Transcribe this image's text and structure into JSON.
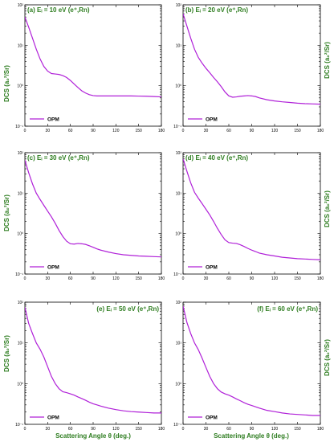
{
  "colors": {
    "curve": "#b020d8",
    "labels": "#2e7d20"
  },
  "figure": {
    "ylabel": "DCS (a₀²/Sr)",
    "xlabel": "Scattering Angle θ (deg.)"
  },
  "chart_data": [
    {
      "type": "line",
      "title": "(a) Eᵢ = 10 eV (e⁺,Rn)",
      "xlim": [
        0,
        180
      ],
      "ylim_log10": [
        -1,
        2
      ],
      "xticks": [
        0,
        30,
        60,
        90,
        120,
        150,
        180
      ],
      "ytick_labels": [
        "10⁻¹",
        "10⁰",
        "10¹",
        "10²"
      ],
      "series": [
        {
          "name": "OPM",
          "x": [
            0,
            5,
            10,
            15,
            20,
            25,
            30,
            35,
            40,
            45,
            50,
            55,
            60,
            65,
            70,
            75,
            80,
            85,
            90,
            95,
            100,
            110,
            120,
            130,
            140,
            150,
            160,
            170,
            180
          ],
          "y": [
            50,
            28,
            15,
            8,
            4.6,
            3.0,
            2.3,
            2.0,
            1.95,
            1.9,
            1.78,
            1.6,
            1.35,
            1.1,
            0.9,
            0.75,
            0.66,
            0.6,
            0.57,
            0.56,
            0.56,
            0.56,
            0.56,
            0.56,
            0.56,
            0.555,
            0.55,
            0.54,
            0.53
          ]
        }
      ]
    },
    {
      "type": "line",
      "title": "(b) Eᵢ = 20 eV (e⁺,Rn)",
      "xlim": [
        0,
        180
      ],
      "ylim_log10": [
        -1,
        2
      ],
      "xticks": [
        0,
        30,
        60,
        90,
        120,
        150,
        180
      ],
      "ytick_labels": [
        "10⁻¹",
        "10⁰",
        "10¹",
        "10²"
      ],
      "series": [
        {
          "name": "OPM",
          "x": [
            0,
            5,
            10,
            15,
            20,
            25,
            30,
            35,
            40,
            45,
            50,
            55,
            60,
            65,
            70,
            75,
            80,
            85,
            90,
            95,
            100,
            110,
            120,
            130,
            140,
            150,
            160,
            170,
            180
          ],
          "y": [
            60,
            30,
            15,
            8,
            5,
            3.6,
            2.7,
            2.1,
            1.6,
            1.25,
            0.95,
            0.7,
            0.56,
            0.52,
            0.53,
            0.55,
            0.56,
            0.57,
            0.56,
            0.54,
            0.5,
            0.45,
            0.42,
            0.4,
            0.385,
            0.37,
            0.36,
            0.355,
            0.35
          ]
        }
      ]
    },
    {
      "type": "line",
      "title": "(c) Eᵢ = 30 eV (e⁺,Rn)",
      "xlim": [
        0,
        180
      ],
      "ylim_log10": [
        -1,
        2
      ],
      "xticks": [
        0,
        30,
        60,
        90,
        120,
        150,
        180
      ],
      "ytick_labels": [
        "10⁻¹",
        "10⁰",
        "10¹",
        "10²"
      ],
      "series": [
        {
          "name": "OPM",
          "x": [
            0,
            5,
            10,
            15,
            20,
            25,
            30,
            35,
            40,
            45,
            50,
            55,
            60,
            65,
            70,
            75,
            80,
            85,
            90,
            95,
            100,
            110,
            120,
            130,
            140,
            150,
            160,
            170,
            180
          ],
          "y": [
            65,
            32,
            17,
            10,
            7,
            5,
            3.6,
            2.6,
            1.8,
            1.2,
            0.85,
            0.65,
            0.56,
            0.55,
            0.57,
            0.56,
            0.54,
            0.5,
            0.46,
            0.42,
            0.39,
            0.35,
            0.32,
            0.3,
            0.29,
            0.28,
            0.275,
            0.27,
            0.265
          ]
        }
      ]
    },
    {
      "type": "line",
      "title": "(d) Eᵢ = 40 eV (e⁺,Rn)",
      "xlim": [
        0,
        180
      ],
      "ylim_log10": [
        -1,
        2
      ],
      "xticks": [
        0,
        30,
        60,
        90,
        120,
        150,
        180
      ],
      "ytick_labels": [
        "10⁻¹",
        "10⁰",
        "10¹",
        "10²"
      ],
      "series": [
        {
          "name": "OPM",
          "x": [
            0,
            5,
            10,
            15,
            20,
            25,
            30,
            35,
            40,
            45,
            50,
            55,
            60,
            65,
            70,
            75,
            80,
            85,
            90,
            95,
            100,
            110,
            120,
            130,
            140,
            150,
            160,
            170,
            180
          ],
          "y": [
            70,
            35,
            18,
            10.5,
            7.5,
            5.5,
            4.0,
            2.9,
            2.0,
            1.35,
            0.95,
            0.7,
            0.6,
            0.58,
            0.57,
            0.53,
            0.48,
            0.43,
            0.39,
            0.36,
            0.33,
            0.3,
            0.28,
            0.26,
            0.25,
            0.24,
            0.235,
            0.23,
            0.225
          ]
        }
      ]
    },
    {
      "type": "line",
      "title": "(e) Eᵢ = 50 eV (e⁺,Rn)",
      "xlim": [
        0,
        180
      ],
      "ylim_log10": [
        -1,
        2
      ],
      "xticks": [
        0,
        30,
        60,
        90,
        120,
        150,
        180
      ],
      "ytick_labels": [
        "10⁻¹",
        "10⁰",
        "10¹",
        "10²"
      ],
      "series": [
        {
          "name": "OPM",
          "x": [
            0,
            5,
            10,
            15,
            20,
            25,
            30,
            35,
            40,
            45,
            50,
            55,
            60,
            65,
            70,
            75,
            80,
            85,
            90,
            95,
            100,
            110,
            120,
            130,
            140,
            150,
            160,
            170,
            180
          ],
          "y": [
            75,
            30,
            17,
            10,
            7,
            4.5,
            2.6,
            1.5,
            1.0,
            0.75,
            0.63,
            0.6,
            0.56,
            0.52,
            0.47,
            0.43,
            0.39,
            0.35,
            0.32,
            0.3,
            0.28,
            0.25,
            0.23,
            0.215,
            0.205,
            0.2,
            0.195,
            0.19,
            0.19
          ]
        }
      ]
    },
    {
      "type": "line",
      "title": "(f) Eᵢ = 60 eV (e⁺,Rn)",
      "xlim": [
        0,
        180
      ],
      "ylim_log10": [
        -1,
        2
      ],
      "xticks": [
        0,
        30,
        60,
        90,
        120,
        150,
        180
      ],
      "ytick_labels": [
        "10⁻¹",
        "10⁰",
        "10¹",
        "10²"
      ],
      "series": [
        {
          "name": "OPM",
          "x": [
            0,
            5,
            10,
            15,
            20,
            25,
            30,
            35,
            40,
            45,
            50,
            55,
            60,
            65,
            70,
            75,
            80,
            85,
            90,
            95,
            100,
            110,
            120,
            130,
            140,
            150,
            160,
            170,
            180
          ],
          "y": [
            80,
            32,
            17,
            10,
            6.8,
            4.2,
            2.5,
            1.5,
            1.0,
            0.75,
            0.62,
            0.56,
            0.52,
            0.47,
            0.42,
            0.38,
            0.34,
            0.31,
            0.29,
            0.27,
            0.25,
            0.22,
            0.205,
            0.19,
            0.18,
            0.175,
            0.17,
            0.165,
            0.165
          ]
        }
      ]
    }
  ]
}
